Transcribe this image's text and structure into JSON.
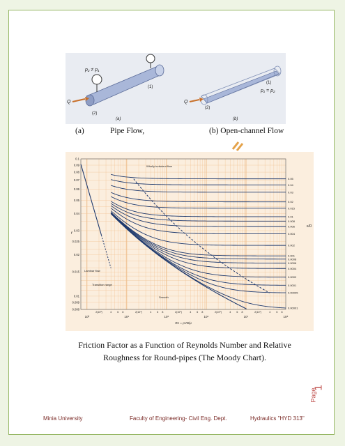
{
  "figure_top": {
    "pipe_labels": {
      "pressure": "p₂ ≠ p₁",
      "q": "Q",
      "sec1": "(1)",
      "sec2": "(2)",
      "panel": "(a)"
    },
    "channel_labels": {
      "pressure": "p₁ = p₂",
      "q": "Q",
      "sec1": "(1)",
      "sec2": "(2)",
      "panel": "(b)"
    }
  },
  "captions": {
    "a": "(a)",
    "pipe": "Pipe Flow,",
    "b": "(b) Open-channel Flow",
    "moody": "Friction Factor as a Function of Reynolds Number and Relative Roughness for Round-pipes (The Moody Chart)."
  },
  "chart_data": {
    "type": "line",
    "xscale": "log",
    "yscale": "log",
    "xlim": [
      700,
      100000000
    ],
    "ylim": [
      0.008,
      0.1
    ],
    "xlabel": "Re = ρVD/μ",
    "ylabel": "f",
    "right_axis_label": "ε/D",
    "y_ticks": [
      "0.1",
      "0.09",
      "0.08",
      "0.07",
      "0.06",
      "0.05",
      "0.04",
      "0.03",
      "0.025",
      "0.02",
      "0.015",
      "0.01",
      "0.009",
      "0.008"
    ],
    "x_ticks": [
      "10³",
      "10⁴",
      "10⁵",
      "10⁶",
      "10⁷",
      "10⁸"
    ],
    "x_minor_ticks": [
      "2(10³)",
      "4",
      "6",
      "8",
      "2(10⁴)",
      "4",
      "6",
      "8",
      "2(10⁵)",
      "4",
      "6",
      "8",
      "2(10⁶)",
      "4",
      "6",
      "8",
      "2(10⁷)",
      "4",
      "6",
      "8"
    ],
    "roughness_ticks": [
      "0.05",
      "0.04",
      "0.03",
      "0.02",
      "0.015",
      "0.01",
      "0.008",
      "0.006",
      "0.004",
      "0.002",
      "0.001",
      "0.0008",
      "0.0006",
      "0.0004",
      "0.0002",
      "0.0001",
      "0.00005",
      "0.00001"
    ],
    "roughness_values": [
      0.05,
      0.04,
      0.03,
      0.02,
      0.015,
      0.01,
      0.008,
      0.006,
      0.004,
      0.002,
      0.001,
      0.0008,
      0.0006,
      0.0004,
      0.0002,
      0.0001,
      5e-05,
      1e-05
    ],
    "annotations": {
      "wholly_turbulent": "Wholly turbulent flow",
      "laminar": "Laminar flow",
      "transition": "Transition range",
      "smooth": "Smooth"
    }
  },
  "footer": {
    "left": "Minia University",
    "middle": "Faculty of Engineering- Civil Eng.  Dept.",
    "right": "Hydraulics \"HYD 313\""
  },
  "page_label": {
    "word": "Page",
    "number": "1"
  }
}
